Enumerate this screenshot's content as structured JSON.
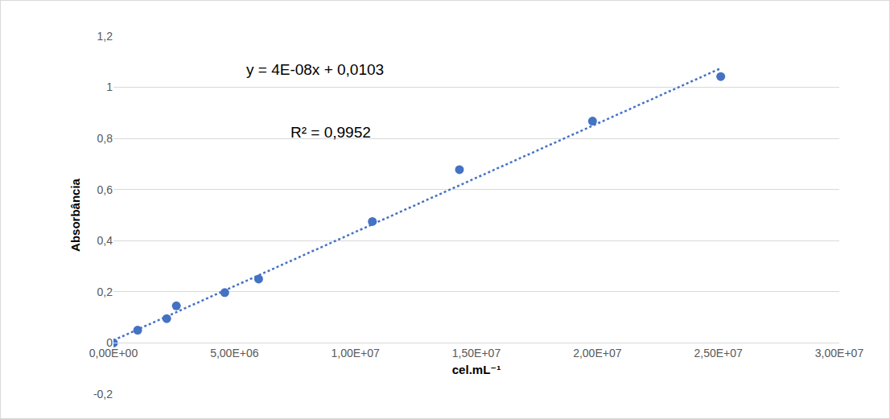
{
  "chart_data": {
    "type": "scatter",
    "x_label": "cel.mL⁻¹",
    "y_label": "Absorbância",
    "annotations": [
      "y = 4E-08x + 0,0103",
      "R² = 0,9952"
    ],
    "series": [
      {
        "type": "scatter",
        "marker": "circle",
        "color": "#4472c4",
        "x": [
          0,
          1000000,
          2200000,
          2600000,
          4600000,
          6000000,
          10700000,
          14300000,
          19800000,
          25100000
        ],
        "values": [
          0,
          0.05,
          0.095,
          0.145,
          0.197,
          0.25,
          0.475,
          0.678,
          0.868,
          1.042
        ]
      },
      {
        "type": "line",
        "line_style": "dotted",
        "color": "#4472c4",
        "x": [
          0,
          25100000
        ],
        "values": [
          0.0103,
          1.0743
        ]
      }
    ],
    "xlim": [
      0,
      30000000
    ],
    "xticks": [
      {
        "value": 0,
        "label": "0,00E+00"
      },
      {
        "value": 5000000,
        "label": "5,00E+06"
      },
      {
        "value": 10000000,
        "label": "1,00E+07"
      },
      {
        "value": 15000000,
        "label": "1,50E+07"
      },
      {
        "value": 20000000,
        "label": "2,00E+07"
      },
      {
        "value": 25000000,
        "label": "2,50E+07"
      },
      {
        "value": 30000000,
        "label": "3,00E+07"
      }
    ],
    "ylim": [
      -0.2,
      1.2
    ],
    "yticks": [
      {
        "value": -0.2,
        "label": "-0,2"
      },
      0,
      {
        "value": 0.2,
        "label": "0,2"
      },
      {
        "value": 0.4,
        "label": "0,4"
      },
      {
        "value": 0.6,
        "label": "0,6"
      },
      {
        "value": 0.8,
        "label": "0,8"
      },
      1,
      {
        "value": 1.2,
        "label": "1,2"
      }
    ],
    "grid": "y"
  }
}
